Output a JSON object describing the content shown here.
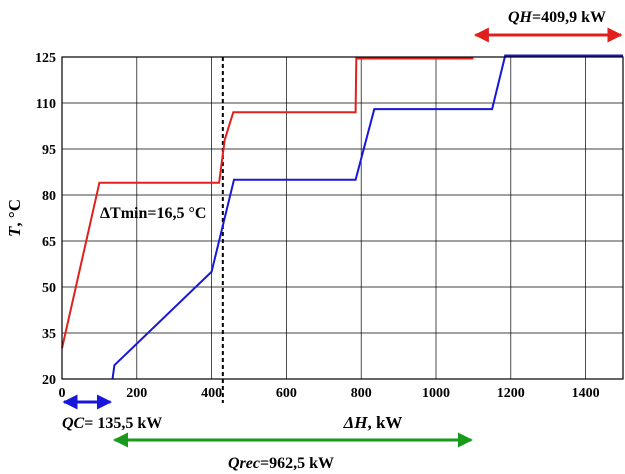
{
  "chart_data": {
    "type": "line",
    "xlabel_var": "ΔH",
    "xlabel_unit": ", kW",
    "ylabel_var": "T",
    "ylabel_unit": ", °C",
    "xlim": [
      0,
      1500
    ],
    "ylim": [
      20,
      125
    ],
    "xticks": [
      0,
      200,
      400,
      600,
      800,
      1000,
      1200,
      1400
    ],
    "yticks": [
      20,
      35,
      50,
      65,
      80,
      95,
      110,
      125
    ],
    "grid": true,
    "series": [
      {
        "color": "#e0201c",
        "points": [
          [
            0,
            30
          ],
          [
            100,
            84
          ],
          [
            420,
            84
          ],
          [
            435,
            98
          ],
          [
            458,
            107
          ],
          [
            785,
            107
          ],
          [
            787,
            124.5
          ],
          [
            1100,
            124.5
          ]
        ]
      },
      {
        "color": "#1717d9",
        "points": [
          [
            135,
            20
          ],
          [
            140,
            24.5
          ],
          [
            400,
            55
          ],
          [
            460,
            85
          ],
          [
            785,
            85
          ],
          [
            835,
            108
          ],
          [
            1150,
            108
          ],
          [
            1185,
            125.5
          ],
          [
            1500,
            125.5
          ]
        ]
      }
    ],
    "pinch_line_x": 430,
    "annotations": {
      "dtmin": {
        "var": "ΔT",
        "rest": "min=16,5 °C"
      },
      "qh": {
        "var": "QH",
        "rest": "=409,9 kW",
        "color": "#e0201c",
        "x_from": 1100,
        "x_to": 1500
      },
      "qc": {
        "var": "QC",
        "rest": "= 135,5 kW",
        "color": "#1717d9",
        "x_from": 0,
        "x_to": 135
      },
      "qrec": {
        "var": "Qrec",
        "rest": "=962,5 kW",
        "color": "#1a9a1a",
        "x_from": 135,
        "x_to": 1100
      }
    }
  }
}
